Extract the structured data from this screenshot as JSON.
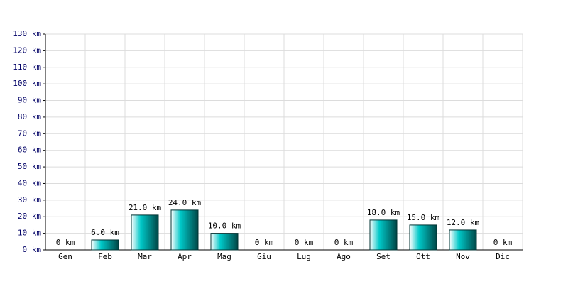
{
  "chart_data": {
    "type": "bar",
    "categories": [
      "Gen",
      "Feb",
      "Mar",
      "Apr",
      "Mag",
      "Giu",
      "Lug",
      "Ago",
      "Set",
      "Ott",
      "Nov",
      "Dic"
    ],
    "values": [
      0,
      6,
      21,
      24,
      10,
      0,
      0,
      0,
      18,
      15,
      12,
      0
    ],
    "value_labels": [
      "0 km",
      "6.0 km",
      "21.0 km",
      "24.0 km",
      "10.0 km",
      "0 km",
      "0 km",
      "0 km",
      "18.0 km",
      "15.0 km",
      "12.0 km",
      "0 km"
    ],
    "color": "#00c8c8",
    "ylim": [
      0,
      130
    ],
    "yticks": [
      {
        "value": 0,
        "label": "0 km"
      },
      {
        "value": 10,
        "label": "10 km"
      },
      {
        "value": 20,
        "label": "20 km"
      },
      {
        "value": 30,
        "label": "30 km"
      },
      {
        "value": 40,
        "label": "40 km"
      },
      {
        "value": 50,
        "label": "50 km"
      },
      {
        "value": 60,
        "label": "60 km"
      },
      {
        "value": 70,
        "label": "70 km"
      },
      {
        "value": 80,
        "label": "80 km"
      },
      {
        "value": 90,
        "label": "90 km"
      },
      {
        "value": 100,
        "label": "100 km"
      },
      {
        "value": 110,
        "label": "110 km"
      },
      {
        "value": 120,
        "label": "120 km"
      },
      {
        "value": 130,
        "label": "130 km"
      }
    ],
    "grid": true
  }
}
